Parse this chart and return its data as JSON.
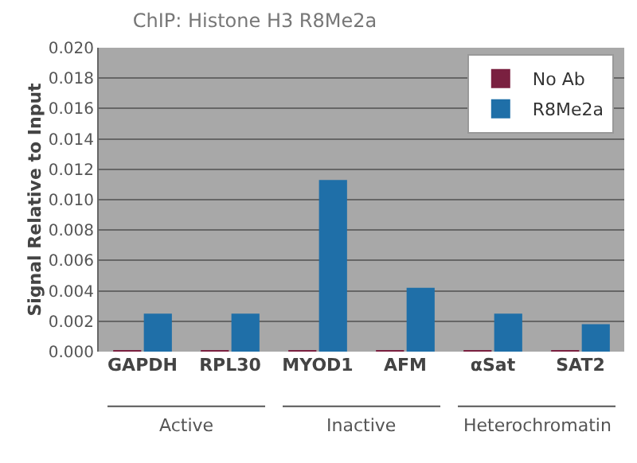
{
  "chart_data": {
    "type": "bar",
    "title": "ChIP: Histone H3 R8Me2a",
    "ylabel": "Signal Relative to Input",
    "categories": [
      "GAPDH",
      "RPL30",
      "MYOD1",
      "AFM",
      "αSat",
      "SAT2"
    ],
    "series": [
      {
        "name": "No Ab",
        "color": "#7a2040",
        "values": [
          0.0001,
          0.0001,
          0.0001,
          0.0001,
          0.0001,
          0.0001
        ]
      },
      {
        "name": "R8Me2a",
        "color": "#1f6fa8",
        "values": [
          0.0025,
          0.0025,
          0.0113,
          0.0042,
          0.0025,
          0.0018
        ]
      }
    ],
    "ylim": [
      0,
      0.02
    ],
    "yticks": [
      {
        "value": 0,
        "label": "0.000"
      },
      {
        "value": 0.002,
        "label": "0.002"
      },
      {
        "value": 0.004,
        "label": "0.004"
      },
      {
        "value": 0.006,
        "label": "0.006"
      },
      {
        "value": 0.008,
        "label": "0.008"
      },
      {
        "value": 0.01,
        "label": "0.010"
      },
      {
        "value": 0.012,
        "label": "0.012"
      },
      {
        "value": 0.014,
        "label": "0.014"
      },
      {
        "value": 0.016,
        "label": "0.016"
      },
      {
        "value": 0.018,
        "label": "0.018"
      },
      {
        "value": 0.02,
        "label": "0.020"
      }
    ],
    "annotations": [
      "Active",
      "Inactive",
      "Heterochromatin"
    ],
    "grid": "y",
    "legend": "top right"
  }
}
